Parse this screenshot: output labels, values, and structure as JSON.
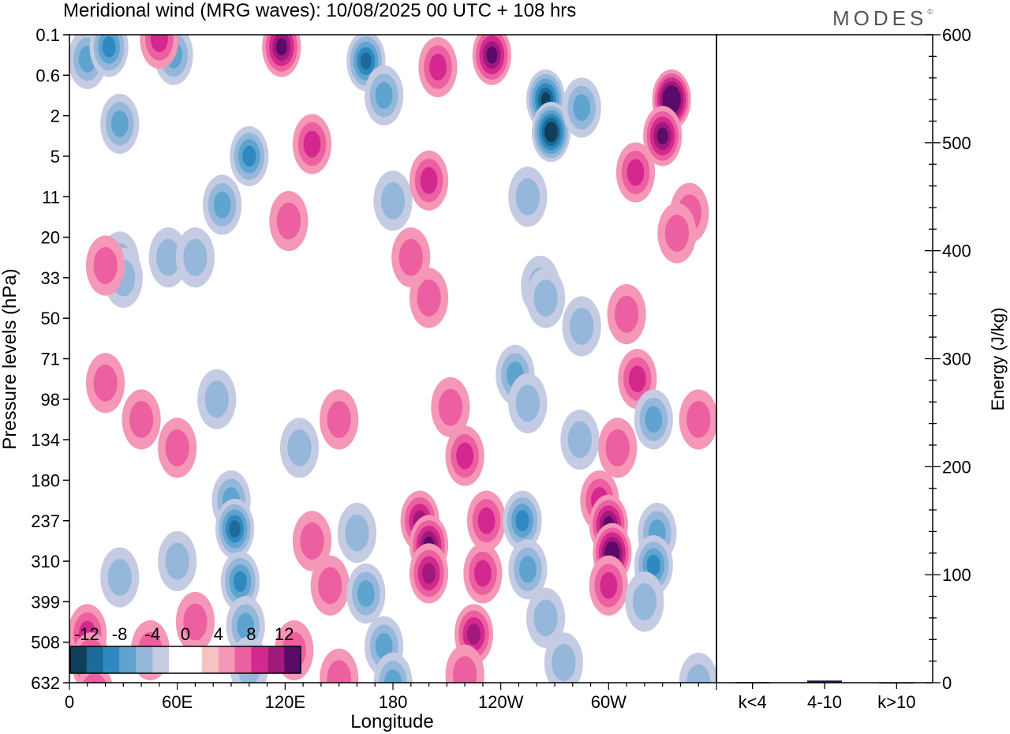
{
  "title": "Meridional wind (MRG waves):  10/08/2025  00 UTC  + 108 hrs",
  "brand": "MODES",
  "brand_mark": "©",
  "chart_data": [
    {
      "type": "heatmap",
      "title": "Meridional wind (MRG waves):  10/08/2025  00 UTC  + 108 hrs",
      "xlabel": "Longitude",
      "ylabel": "Pressure levels (hPa)",
      "x_ticks": [
        {
          "lon": 0,
          "label": "0"
        },
        {
          "lon": 60,
          "label": "60E"
        },
        {
          "lon": 120,
          "label": "120E"
        },
        {
          "lon": 180,
          "label": "180"
        },
        {
          "lon": 240,
          "label": "120W"
        },
        {
          "lon": 300,
          "label": "60W"
        }
      ],
      "xlim": [
        0,
        360
      ],
      "y_levels": [
        "0.1",
        "0.6",
        "2",
        "5",
        "11",
        "20",
        "33",
        "50",
        "71",
        "98",
        "134",
        "180",
        "237",
        "310",
        "399",
        "508",
        "632"
      ],
      "colorbar": {
        "labels": [
          "-12",
          "-8",
          "-4",
          "0",
          "4",
          "8",
          "12"
        ],
        "colors": [
          "#0f3f5c",
          "#1b6a97",
          "#2f89c0",
          "#5ea4cf",
          "#94b7da",
          "#c5cbe3",
          "#ffffff",
          "#ffffff",
          "#f7c2c2",
          "#f597b6",
          "#ec5fa0",
          "#d3288e",
          "#a2197c",
          "#5c0a68"
        ]
      },
      "cells": [
        {
          "lon": 10,
          "lev": 0.6,
          "v": -6
        },
        {
          "lon": 22,
          "lev": 0.3,
          "v": -8
        },
        {
          "lon": 28,
          "lev": 2.2,
          "v": -5
        },
        {
          "lon": 58,
          "lev": 0.5,
          "v": -6
        },
        {
          "lon": 55,
          "lev": 5.5,
          "v": -4
        },
        {
          "lon": 28,
          "lev": 5.6,
          "v": -4
        },
        {
          "lon": 50,
          "lev": 0.1,
          "v": 5
        },
        {
          "lon": 85,
          "lev": 4.2,
          "v": -6
        },
        {
          "lon": 100,
          "lev": 3,
          "v": -8
        },
        {
          "lon": 118,
          "lev": 0.3,
          "v": 9
        },
        {
          "lon": 165,
          "lev": 0.65,
          "v": -9
        },
        {
          "lon": 175,
          "lev": 1.5,
          "v": -6
        },
        {
          "lon": 135,
          "lev": 2.7,
          "v": 5
        },
        {
          "lon": 122,
          "lev": 4.6,
          "v": 4
        },
        {
          "lon": 180,
          "lev": 4.1,
          "v": -4
        },
        {
          "lon": 205,
          "lev": 0.8,
          "v": 6
        },
        {
          "lon": 235,
          "lev": 0.5,
          "v": 10
        },
        {
          "lon": 200,
          "lev": 3.6,
          "v": 6
        },
        {
          "lon": 265,
          "lev": 1.6,
          "v": -12
        },
        {
          "lon": 268,
          "lev": 2.4,
          "v": -14
        },
        {
          "lon": 285,
          "lev": 1.8,
          "v": -6
        },
        {
          "lon": 255,
          "lev": 4,
          "v": -4
        },
        {
          "lon": 262,
          "lev": 6.2,
          "v": -4
        },
        {
          "lon": 335,
          "lev": 1.6,
          "v": 14
        },
        {
          "lon": 330,
          "lev": 2.5,
          "v": 10
        },
        {
          "lon": 315,
          "lev": 3.4,
          "v": 5
        },
        {
          "lon": 345,
          "lev": 4.4,
          "v": 3
        },
        {
          "lon": 190,
          "lev": 5.5,
          "v": 4
        },
        {
          "lon": 200,
          "lev": 6.5,
          "v": 3
        },
        {
          "lon": 265,
          "lev": 6.5,
          "v": -4
        },
        {
          "lon": 285,
          "lev": 7.2,
          "v": -3
        },
        {
          "lon": 70,
          "lev": 5.5,
          "v": -3
        },
        {
          "lon": 30,
          "lev": 6,
          "v": -3
        },
        {
          "lon": 20,
          "lev": 5.7,
          "v": 3
        },
        {
          "lon": 310,
          "lev": 6.9,
          "v": 3
        },
        {
          "lon": 338,
          "lev": 4.9,
          "v": 3
        },
        {
          "lon": 20,
          "lev": 8.6,
          "v": 3
        },
        {
          "lon": 40,
          "lev": 9.5,
          "v": 3
        },
        {
          "lon": 60,
          "lev": 10.2,
          "v": 3
        },
        {
          "lon": 82,
          "lev": 9,
          "v": -3
        },
        {
          "lon": 128,
          "lev": 10.2,
          "v": -3
        },
        {
          "lon": 150,
          "lev": 9.5,
          "v": 4
        },
        {
          "lon": 212,
          "lev": 9.2,
          "v": 4
        },
        {
          "lon": 220,
          "lev": 10.4,
          "v": 6
        },
        {
          "lon": 232,
          "lev": 12,
          "v": 5
        },
        {
          "lon": 248,
          "lev": 8.4,
          "v": -5
        },
        {
          "lon": 255,
          "lev": 9.1,
          "v": -4
        },
        {
          "lon": 316,
          "lev": 8.5,
          "v": 6
        },
        {
          "lon": 325,
          "lev": 9.5,
          "v": -5
        },
        {
          "lon": 350,
          "lev": 9.5,
          "v": 3
        },
        {
          "lon": 284,
          "lev": 10,
          "v": -3
        },
        {
          "lon": 305,
          "lev": 10.2,
          "v": 3
        },
        {
          "lon": 90,
          "lev": 11.5,
          "v": -6
        },
        {
          "lon": 92,
          "lev": 12.2,
          "v": -9
        },
        {
          "lon": 95,
          "lev": 13.5,
          "v": -7
        },
        {
          "lon": 98,
          "lev": 14.6,
          "v": -5
        },
        {
          "lon": 100,
          "lev": 15.6,
          "v": -3
        },
        {
          "lon": 60,
          "lev": 13,
          "v": -3
        },
        {
          "lon": 28,
          "lev": 13.4,
          "v": -3
        },
        {
          "lon": 135,
          "lev": 12.5,
          "v": 3
        },
        {
          "lon": 145,
          "lev": 13.6,
          "v": 4
        },
        {
          "lon": 160,
          "lev": 12.3,
          "v": -4
        },
        {
          "lon": 165,
          "lev": 13.8,
          "v": -5
        },
        {
          "lon": 175,
          "lev": 15.1,
          "v": -6
        },
        {
          "lon": 180,
          "lev": 16,
          "v": -5
        },
        {
          "lon": 195,
          "lev": 12,
          "v": 7
        },
        {
          "lon": 200,
          "lev": 12.6,
          "v": 10
        },
        {
          "lon": 200,
          "lev": 13.3,
          "v": 7
        },
        {
          "lon": 230,
          "lev": 13.3,
          "v": 6
        },
        {
          "lon": 225,
          "lev": 14.8,
          "v": 7
        },
        {
          "lon": 220,
          "lev": 15.8,
          "v": 4
        },
        {
          "lon": 252,
          "lev": 12,
          "v": -7
        },
        {
          "lon": 255,
          "lev": 13.2,
          "v": -6
        },
        {
          "lon": 265,
          "lev": 14.4,
          "v": -4
        },
        {
          "lon": 295,
          "lev": 11.5,
          "v": 5
        },
        {
          "lon": 300,
          "lev": 12.1,
          "v": 9
        },
        {
          "lon": 302,
          "lev": 12.8,
          "v": 11
        },
        {
          "lon": 300,
          "lev": 13.6,
          "v": 6
        },
        {
          "lon": 327,
          "lev": 12.3,
          "v": -6
        },
        {
          "lon": 325,
          "lev": 13.1,
          "v": -8
        },
        {
          "lon": 320,
          "lev": 14,
          "v": -4
        },
        {
          "lon": 10,
          "lev": 14.8,
          "v": 5
        },
        {
          "lon": 12,
          "lev": 15.5,
          "v": 8
        },
        {
          "lon": 14,
          "lev": 16.3,
          "v": 6
        },
        {
          "lon": 45,
          "lev": 15.2,
          "v": 3
        },
        {
          "lon": 70,
          "lev": 14.5,
          "v": 3
        },
        {
          "lon": 125,
          "lev": 15.2,
          "v": 3
        },
        {
          "lon": 150,
          "lev": 15.9,
          "v": 3
        },
        {
          "lon": 275,
          "lev": 15.5,
          "v": -3
        },
        {
          "lon": 350,
          "lev": 16,
          "v": -3
        }
      ]
    },
    {
      "type": "bar",
      "ylabel": "Energy (J/kg)",
      "ylim": [
        0,
        600
      ],
      "y_ticks": [
        "0",
        "100",
        "200",
        "300",
        "400",
        "500",
        "600"
      ],
      "categories": [
        "k<4",
        "4-10",
        "k>10"
      ],
      "values": [
        0.5,
        2,
        0.3
      ]
    }
  ]
}
